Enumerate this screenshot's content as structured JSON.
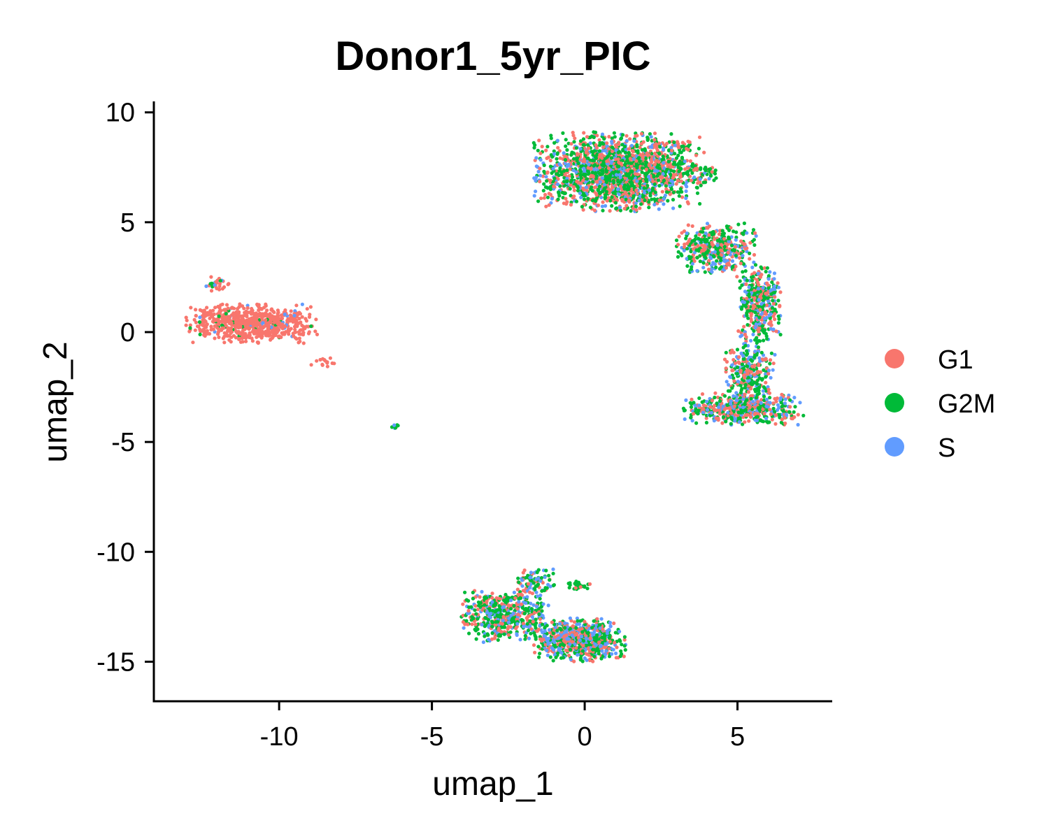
{
  "chart_data": {
    "type": "scatter",
    "title": "Donor1_5yr_PIC",
    "xlabel": "umap_1",
    "ylabel": "umap_2",
    "xlim": [
      -14.1,
      8.1
    ],
    "ylim": [
      -16.8,
      10.5
    ],
    "x_ticks": [
      -10,
      -5,
      0,
      5
    ],
    "y_ticks": [
      -15,
      -10,
      -5,
      0,
      5,
      10
    ],
    "x_tick_labels": [
      "-10",
      "-5",
      "0",
      "5"
    ],
    "y_tick_labels": [
      "-15",
      "-10",
      "-5",
      "0",
      "5",
      "10"
    ],
    "grid": false,
    "legend_position": "right",
    "series": [
      {
        "name": "G1",
        "color": "#F8766D"
      },
      {
        "name": "G2M",
        "color": "#00BA38"
      },
      {
        "name": "S",
        "color": "#619CFF"
      }
    ],
    "clusters": [
      {
        "label": "left-cluster",
        "center": [
          -10.9,
          0.4
        ],
        "spread": [
          1.3,
          0.55
        ],
        "count": 700,
        "mix": [
          0.93,
          0.04,
          0.03
        ]
      },
      {
        "label": "left-cluster-tip",
        "center": [
          -12.0,
          2.2
        ],
        "spread": [
          0.25,
          0.25
        ],
        "count": 30,
        "mix": [
          0.5,
          0.2,
          0.3
        ]
      },
      {
        "label": "left-trail",
        "center": [
          -8.6,
          -1.3
        ],
        "spread": [
          0.35,
          0.2
        ],
        "count": 14,
        "mix": [
          1.0,
          0.0,
          0.0
        ]
      },
      {
        "label": "isolated-group",
        "center": [
          -6.2,
          -4.3
        ],
        "spread": [
          0.08,
          0.08
        ],
        "count": 14,
        "mix": [
          0.1,
          0.5,
          0.4
        ]
      },
      {
        "label": "top-right-blob",
        "center": [
          1.1,
          7.3
        ],
        "spread": [
          1.7,
          1.1
        ],
        "count": 1900,
        "mix": [
          0.38,
          0.45,
          0.17
        ]
      },
      {
        "label": "top-right-tail",
        "center": [
          3.9,
          7.2
        ],
        "spread": [
          0.35,
          0.35
        ],
        "count": 40,
        "mix": [
          0.3,
          0.6,
          0.1
        ]
      },
      {
        "label": "arm-upper",
        "center": [
          4.3,
          3.8
        ],
        "spread": [
          0.8,
          0.7
        ],
        "count": 420,
        "mix": [
          0.35,
          0.45,
          0.2
        ]
      },
      {
        "label": "arm-middle",
        "center": [
          5.7,
          1.3
        ],
        "spread": [
          0.45,
          1.1
        ],
        "count": 380,
        "mix": [
          0.33,
          0.42,
          0.25
        ]
      },
      {
        "label": "arm-lower",
        "center": [
          5.4,
          -1.8
        ],
        "spread": [
          0.5,
          0.9
        ],
        "count": 300,
        "mix": [
          0.3,
          0.45,
          0.25
        ]
      },
      {
        "label": "bottom-right-curl",
        "center": [
          5.2,
          -3.5
        ],
        "spread": [
          1.2,
          0.45
        ],
        "count": 520,
        "mix": [
          0.35,
          0.4,
          0.25
        ]
      },
      {
        "label": "bottom-cluster-left",
        "center": [
          -2.6,
          -12.9
        ],
        "spread": [
          0.9,
          0.75
        ],
        "count": 560,
        "mix": [
          0.32,
          0.45,
          0.23
        ]
      },
      {
        "label": "bottom-cluster-right",
        "center": [
          -0.2,
          -14.0
        ],
        "spread": [
          0.95,
          0.6
        ],
        "count": 700,
        "mix": [
          0.3,
          0.4,
          0.3
        ]
      },
      {
        "label": "bottom-cluster-top",
        "center": [
          -1.6,
          -11.3
        ],
        "spread": [
          0.4,
          0.35
        ],
        "count": 90,
        "mix": [
          0.25,
          0.5,
          0.25
        ]
      },
      {
        "label": "bottom-cluster-spur",
        "center": [
          -0.2,
          -11.5
        ],
        "spread": [
          0.25,
          0.12
        ],
        "count": 25,
        "mix": [
          0.2,
          0.7,
          0.1
        ]
      }
    ]
  }
}
